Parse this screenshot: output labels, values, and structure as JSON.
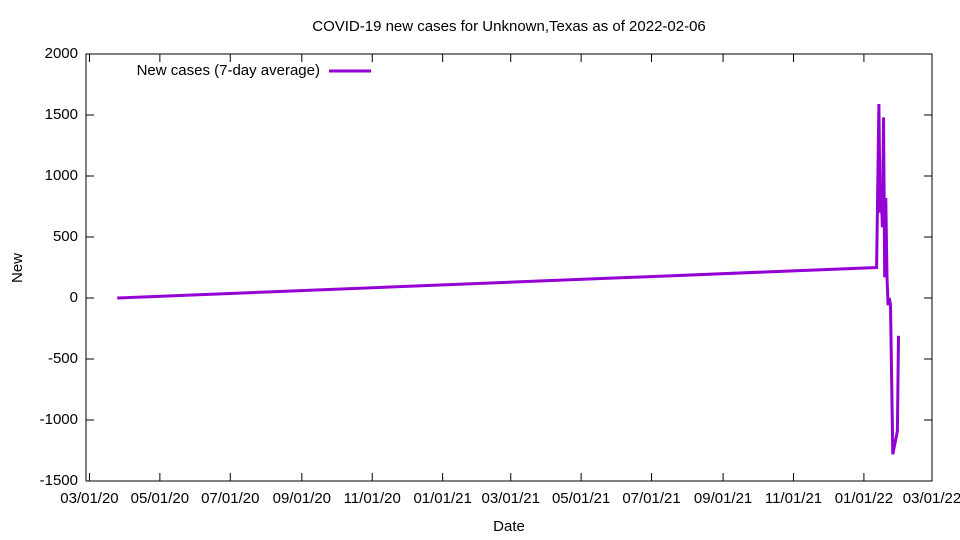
{
  "chart_data": {
    "type": "line",
    "title": "COVID-19 new cases for Unknown,Texas as of 2022-02-06",
    "x_label": "Date",
    "y_label": "New",
    "x": [
      "2020-03-25",
      "2022-01-12",
      "2022-01-14",
      "2022-01-15",
      "2022-01-16",
      "2022-01-17",
      "2022-01-18",
      "2022-01-19",
      "2022-01-20",
      "2022-01-21",
      "2022-01-22",
      "2022-01-23",
      "2022-01-24",
      "2022-01-26",
      "2022-01-30",
      "2022-01-31"
    ],
    "series": [
      {
        "name": "New cases (7-day average)",
        "color": "#9400d3",
        "values": [
          0,
          250,
          1590,
          700,
          850,
          580,
          1480,
          170,
          820,
          170,
          -60,
          0,
          -60,
          -1280,
          -1090,
          -310
        ]
      }
    ],
    "xlim": [
      "2020-02-27",
      "2022-03-01"
    ],
    "xticks": [
      {
        "value": "2020-03-01",
        "label": "03/01/20"
      },
      {
        "value": "2020-05-01",
        "label": "05/01/20"
      },
      {
        "value": "2020-07-01",
        "label": "07/01/20"
      },
      {
        "value": "2020-09-01",
        "label": "09/01/20"
      },
      {
        "value": "2020-11-01",
        "label": "11/01/20"
      },
      {
        "value": "2021-01-01",
        "label": "01/01/21"
      },
      {
        "value": "2021-03-01",
        "label": "03/01/21"
      },
      {
        "value": "2021-05-01",
        "label": "05/01/21"
      },
      {
        "value": "2021-07-01",
        "label": "07/01/21"
      },
      {
        "value": "2021-09-01",
        "label": "09/01/21"
      },
      {
        "value": "2021-11-01",
        "label": "11/01/21"
      },
      {
        "value": "2022-01-01",
        "label": "01/01/22"
      },
      {
        "value": "2022-03-01",
        "label": "03/01/22"
      }
    ],
    "ylim": [
      -1500,
      2000
    ],
    "yticks": [
      -1500,
      -1000,
      -500,
      0,
      500,
      1000,
      1500,
      2000
    ],
    "legend": "top-left"
  }
}
